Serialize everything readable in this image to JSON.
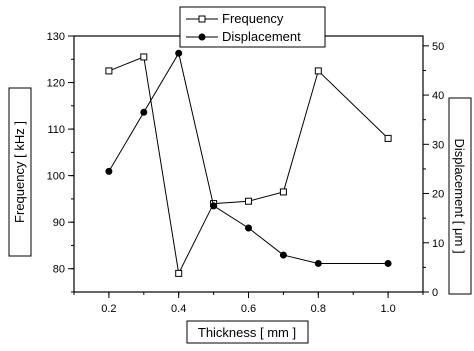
{
  "chart_data": {
    "type": "line",
    "xlabel": "Thickness [ mm ]",
    "ylabel_left": "Frequency [ kHz ]",
    "ylabel_right": "Displacement [ μm ]",
    "xlim": [
      0.1,
      1.1
    ],
    "ylim_left": [
      75,
      130
    ],
    "ylim_right": [
      0,
      52
    ],
    "x_ticks": [
      0.2,
      0.4,
      0.6,
      0.8,
      1.0
    ],
    "x_tick_labels": [
      "0.2",
      "0.4",
      "0.6",
      "0.8",
      "1.0"
    ],
    "y_left_ticks": [
      80,
      90,
      100,
      110,
      120,
      130
    ],
    "y_left_tick_labels": [
      "80",
      "90",
      "100",
      "110",
      "120",
      "130"
    ],
    "y_right_ticks": [
      0,
      10,
      20,
      30,
      40,
      50
    ],
    "y_right_tick_labels": [
      "0",
      "10",
      "20",
      "30",
      "40",
      "50"
    ],
    "grid": false,
    "legend_position": "top-center",
    "series": [
      {
        "name": "Frequency",
        "axis": "left",
        "marker": "open-square",
        "x": [
          0.2,
          0.3,
          0.4,
          0.5,
          0.6,
          0.7,
          0.8,
          1.0
        ],
        "y": [
          122.5,
          125.5,
          79,
          94,
          94.5,
          96.5,
          122.5,
          108
        ]
      },
      {
        "name": "Displacement",
        "axis": "right",
        "marker": "filled-circle",
        "x": [
          0.2,
          0.3,
          0.4,
          0.5,
          0.6,
          0.7,
          0.8,
          1.0
        ],
        "y": [
          24.5,
          36.5,
          48.5,
          17.5,
          13,
          7.5,
          5.8,
          5.8
        ]
      }
    ]
  }
}
